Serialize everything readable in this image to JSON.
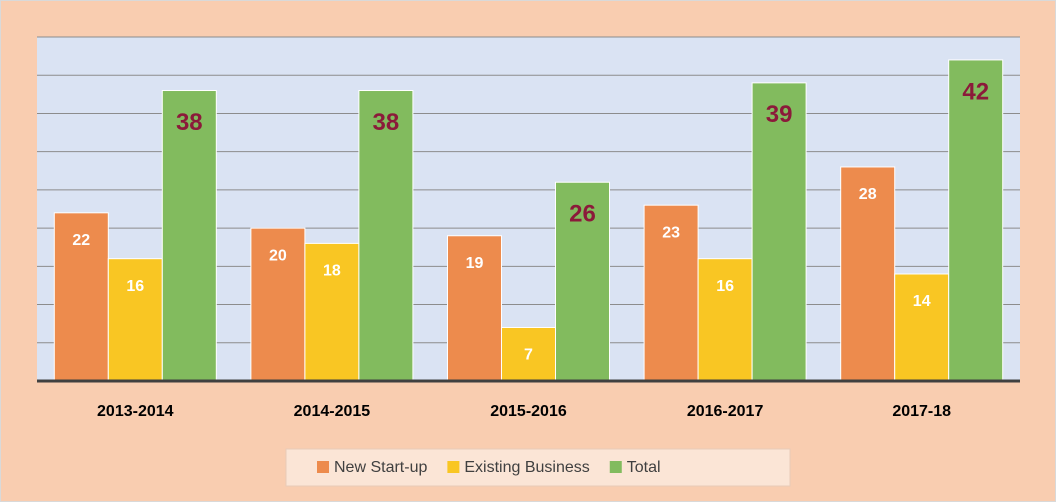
{
  "chart_data": {
    "type": "bar",
    "categories": [
      "2013-2014",
      "2014-2015",
      "2015-2016",
      "2016-2017",
      "2017-18"
    ],
    "series": [
      {
        "name": "New Start-up",
        "color": "#ed8b4d",
        "values": [
          22,
          20,
          19,
          23,
          28
        ]
      },
      {
        "name": "Existing Business",
        "color": "#f9c623",
        "values": [
          16,
          18,
          7,
          16,
          14
        ]
      },
      {
        "name": "Total",
        "color": "#82bb5e",
        "values": [
          38,
          38,
          26,
          39,
          42
        ]
      }
    ],
    "ylim": [
      0,
      45
    ],
    "yticks": [
      0,
      5,
      10,
      15,
      20,
      25,
      30,
      35,
      40,
      45
    ],
    "grid": true
  }
}
